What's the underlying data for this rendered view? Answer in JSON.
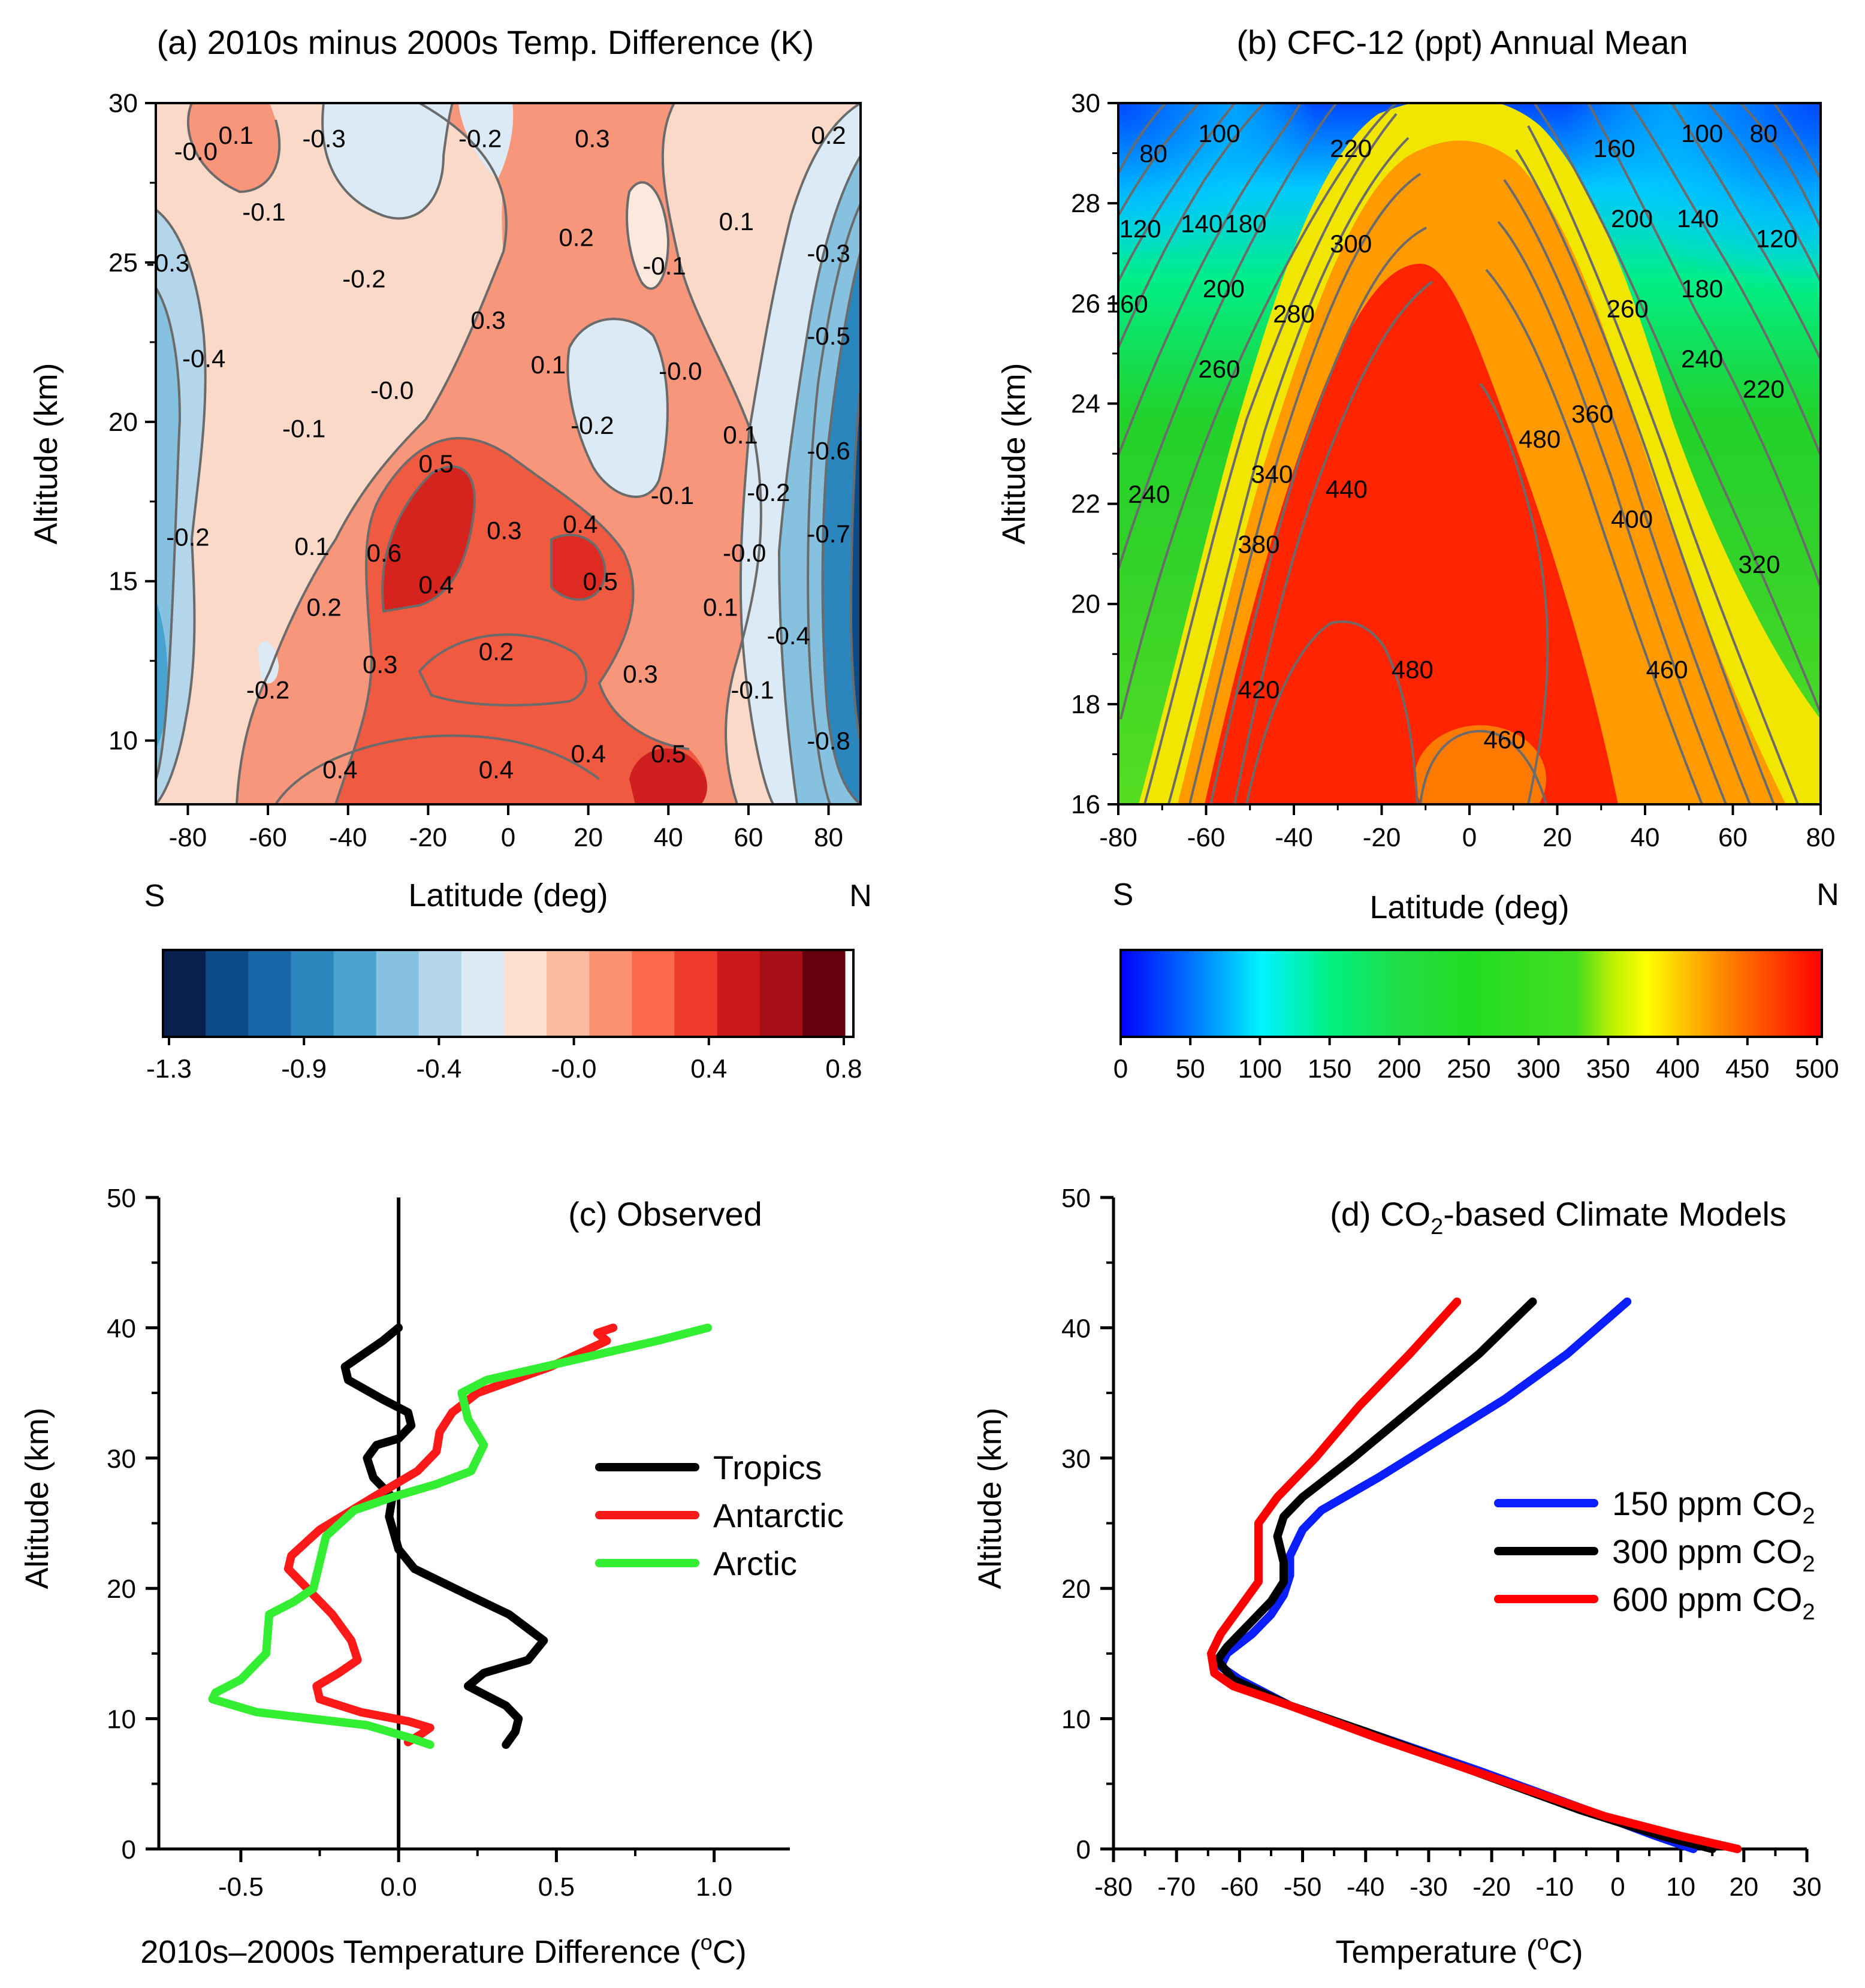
{
  "colors": {
    "contour_line": "#6b6b6b",
    "tropics": "#000000",
    "antarctic": "#ff1a1a",
    "arctic": "#33ee33",
    "co2_150": "#0a1eff",
    "co2_300": "#000000",
    "co2_600": "#ff0000"
  },
  "chart_data": [
    {
      "id": "a",
      "type": "heatmap",
      "title": "(a) 2010s minus 2000s Temp. Difference (K)",
      "xlabel": "Latitude (deg)",
      "ylabel": "Altitude (km)",
      "hemisphere_labels": {
        "south": "S",
        "north": "N"
      },
      "xlim": [
        -88,
        88
      ],
      "ylim": [
        8,
        30
      ],
      "xticks": [
        -80,
        -60,
        -40,
        -20,
        0,
        20,
        40,
        60,
        80
      ],
      "yticks": [
        10,
        15,
        20,
        25,
        30
      ],
      "colorbar": {
        "colors": [
          "#08214f",
          "#0c4b8a",
          "#1766a8",
          "#2b86be",
          "#4aa2cf",
          "#86c2e0",
          "#b4d6ea",
          "#dbeaf4",
          "#fde0d2",
          "#fcbba1",
          "#fc9272",
          "#fb6a4a",
          "#ef3b2c",
          "#cb181d",
          "#a50f15",
          "#67000d"
        ],
        "tick_labels": [
          "-1.3",
          "-0.9",
          "-0.4",
          "-0.0",
          "0.4",
          "0.8"
        ]
      },
      "contour_labels": [
        {
          "lat": -78,
          "alt": 28.5,
          "text": "-0.0"
        },
        {
          "lat": -68,
          "alt": 29.0,
          "text": "0.1"
        },
        {
          "lat": -46,
          "alt": 28.9,
          "text": "-0.3"
        },
        {
          "lat": -7,
          "alt": 28.9,
          "text": "-0.2"
        },
        {
          "lat": 21,
          "alt": 28.9,
          "text": "0.3"
        },
        {
          "lat": 80,
          "alt": 29.0,
          "text": "0.2"
        },
        {
          "lat": -61,
          "alt": 26.6,
          "text": "-0.1"
        },
        {
          "lat": -85,
          "alt": 25.0,
          "text": "-0.3"
        },
        {
          "lat": 17,
          "alt": 25.8,
          "text": "0.2"
        },
        {
          "lat": 57,
          "alt": 26.3,
          "text": "0.1"
        },
        {
          "lat": 39,
          "alt": 24.9,
          "text": "-0.1"
        },
        {
          "lat": 80,
          "alt": 25.3,
          "text": "-0.3"
        },
        {
          "lat": -36,
          "alt": 24.5,
          "text": "-0.2"
        },
        {
          "lat": -5,
          "alt": 23.2,
          "text": "0.3"
        },
        {
          "lat": -76,
          "alt": 22.0,
          "text": "-0.4"
        },
        {
          "lat": 43,
          "alt": 21.6,
          "text": "-0.0"
        },
        {
          "lat": 10,
          "alt": 21.8,
          "text": "0.1"
        },
        {
          "lat": 80,
          "alt": 22.7,
          "text": "-0.5"
        },
        {
          "lat": -29,
          "alt": 21.0,
          "text": "-0.0"
        },
        {
          "lat": -51,
          "alt": 19.8,
          "text": "-0.1"
        },
        {
          "lat": 21,
          "alt": 19.9,
          "text": "-0.2"
        },
        {
          "lat": 58,
          "alt": 19.6,
          "text": "0.1"
        },
        {
          "lat": 80,
          "alt": 19.1,
          "text": "-0.6"
        },
        {
          "lat": -18,
          "alt": 18.7,
          "text": "0.5"
        },
        {
          "lat": 41,
          "alt": 17.7,
          "text": "-0.1"
        },
        {
          "lat": 65,
          "alt": 17.8,
          "text": "-0.2"
        },
        {
          "lat": -80,
          "alt": 16.4,
          "text": "-0.2"
        },
        {
          "lat": 18,
          "alt": 16.8,
          "text": "0.4"
        },
        {
          "lat": -1,
          "alt": 16.6,
          "text": "0.3"
        },
        {
          "lat": 80,
          "alt": 16.5,
          "text": "-0.7"
        },
        {
          "lat": -49,
          "alt": 16.1,
          "text": "0.1"
        },
        {
          "lat": -31,
          "alt": 15.9,
          "text": "0.6"
        },
        {
          "lat": 59,
          "alt": 15.9,
          "text": "-0.0"
        },
        {
          "lat": -18,
          "alt": 14.9,
          "text": "0.4"
        },
        {
          "lat": 23,
          "alt": 15.0,
          "text": "0.5"
        },
        {
          "lat": -46,
          "alt": 14.2,
          "text": "0.2"
        },
        {
          "lat": 53,
          "alt": 14.2,
          "text": "0.1"
        },
        {
          "lat": 70,
          "alt": 13.3,
          "text": "-0.4"
        },
        {
          "lat": -3,
          "alt": 12.8,
          "text": "0.2"
        },
        {
          "lat": -32,
          "alt": 12.4,
          "text": "0.3"
        },
        {
          "lat": 33,
          "alt": 12.1,
          "text": "0.3"
        },
        {
          "lat": -60,
          "alt": 11.6,
          "text": "-0.2"
        },
        {
          "lat": 61,
          "alt": 11.6,
          "text": "-0.1"
        },
        {
          "lat": 80,
          "alt": 10.0,
          "text": "-0.8"
        },
        {
          "lat": 20,
          "alt": 9.6,
          "text": "0.4"
        },
        {
          "lat": 40,
          "alt": 9.6,
          "text": "0.5"
        },
        {
          "lat": -42,
          "alt": 9.1,
          "text": "0.4"
        },
        {
          "lat": -3,
          "alt": 9.1,
          "text": "0.4"
        }
      ]
    },
    {
      "id": "b",
      "type": "heatmap",
      "title": "(b) CFC-12 (ppt)   Annual Mean",
      "xlabel": "Latitude (deg)",
      "ylabel": "Altitude (km)",
      "hemisphere_labels": {
        "south": "S",
        "north": "N"
      },
      "xlim": [
        -80,
        80
      ],
      "ylim": [
        16,
        30
      ],
      "xticks": [
        -80,
        -60,
        -40,
        -20,
        0,
        20,
        40,
        60,
        80
      ],
      "yticks": [
        16,
        18,
        20,
        22,
        24,
        26,
        28,
        30
      ],
      "colorbar": {
        "range": [
          0,
          500
        ],
        "tick_labels": [
          "0",
          "50",
          "100",
          "150",
          "200",
          "250",
          "300",
          "350",
          "400",
          "450",
          "500"
        ]
      },
      "contour_labels": [
        {
          "lat": -72,
          "alt": 29.0,
          "text": "80"
        },
        {
          "lat": -57,
          "alt": 29.4,
          "text": "100"
        },
        {
          "lat": -27,
          "alt": 29.1,
          "text": "220"
        },
        {
          "lat": 33,
          "alt": 29.1,
          "text": "160"
        },
        {
          "lat": 53,
          "alt": 29.4,
          "text": "100"
        },
        {
          "lat": 67,
          "alt": 29.4,
          "text": "80"
        },
        {
          "lat": -75,
          "alt": 27.5,
          "text": "120"
        },
        {
          "lat": -61,
          "alt": 27.6,
          "text": "140"
        },
        {
          "lat": -51,
          "alt": 27.6,
          "text": "180"
        },
        {
          "lat": -27,
          "alt": 27.2,
          "text": "300"
        },
        {
          "lat": 37,
          "alt": 27.7,
          "text": "200"
        },
        {
          "lat": 52,
          "alt": 27.7,
          "text": "140"
        },
        {
          "lat": 70,
          "alt": 27.3,
          "text": "120"
        },
        {
          "lat": -78,
          "alt": 26.0,
          "text": "160"
        },
        {
          "lat": -56,
          "alt": 26.3,
          "text": "200"
        },
        {
          "lat": -40,
          "alt": 25.8,
          "text": "280"
        },
        {
          "lat": 53,
          "alt": 26.3,
          "text": "180"
        },
        {
          "lat": 36,
          "alt": 25.9,
          "text": "260"
        },
        {
          "lat": -57,
          "alt": 24.7,
          "text": "260"
        },
        {
          "lat": 53,
          "alt": 24.9,
          "text": "240"
        },
        {
          "lat": 67,
          "alt": 24.3,
          "text": "220"
        },
        {
          "lat": 28,
          "alt": 23.8,
          "text": "360"
        },
        {
          "lat": -45,
          "alt": 22.6,
          "text": "340"
        },
        {
          "lat": 16,
          "alt": 23.3,
          "text": "480"
        },
        {
          "lat": -28,
          "alt": 22.3,
          "text": "440"
        },
        {
          "lat": -73,
          "alt": 22.2,
          "text": "240"
        },
        {
          "lat": 37,
          "alt": 21.7,
          "text": "400"
        },
        {
          "lat": -48,
          "alt": 21.2,
          "text": "380"
        },
        {
          "lat": 66,
          "alt": 20.8,
          "text": "320"
        },
        {
          "lat": -48,
          "alt": 18.3,
          "text": "420"
        },
        {
          "lat": -13,
          "alt": 18.7,
          "text": "480"
        },
        {
          "lat": 45,
          "alt": 18.7,
          "text": "460"
        },
        {
          "lat": 8,
          "alt": 17.3,
          "text": "460"
        }
      ]
    },
    {
      "id": "c",
      "type": "line",
      "title": "(c) Observed",
      "xlabel": "2010s–2000s Temperature Difference (",
      "xlabel_unit_sup": "o",
      "xlabel_unit": "C)",
      "ylabel": "Altitude (km)",
      "xlim": [
        -0.76,
        1.24
      ],
      "ylim": [
        0,
        50
      ],
      "xticks": [
        -0.5,
        0.0,
        0.5,
        1.0
      ],
      "xtick_labels": [
        "-0.5",
        "0.0",
        "0.5",
        "1.0"
      ],
      "yticks": [
        0,
        10,
        20,
        30,
        40,
        50
      ],
      "legend_position": "right",
      "series": [
        {
          "name": "Tropics",
          "color_key": "tropics",
          "x": [
            0.0,
            -0.05,
            -0.17,
            -0.16,
            -0.05,
            0.03,
            0.04,
            0.0,
            -0.07,
            -0.1,
            -0.08,
            -0.02,
            -0.03,
            0.0,
            0.05,
            0.22,
            0.35,
            0.46,
            0.41,
            0.27,
            0.22,
            0.34,
            0.38,
            0.37,
            0.34
          ],
          "y": [
            40,
            39,
            37,
            36,
            34.5,
            33.5,
            32.5,
            31.5,
            31,
            30,
            28.5,
            27,
            25.5,
            23,
            21.5,
            19.5,
            18,
            16,
            14.5,
            13.5,
            12.5,
            11,
            10,
            9,
            8
          ]
        },
        {
          "name": "Antarctic",
          "color_key": "antarctic",
          "x": [
            0.68,
            0.63,
            0.66,
            0.48,
            0.25,
            0.17,
            0.13,
            0.12,
            0.06,
            -0.08,
            -0.25,
            -0.34,
            -0.35,
            -0.29,
            -0.21,
            -0.15,
            -0.13,
            -0.19,
            -0.26,
            -0.25,
            -0.12,
            0.03,
            0.1,
            0.07,
            0.03
          ],
          "y": [
            40,
            39.6,
            39,
            37,
            35,
            33.5,
            32,
            30.5,
            29,
            27,
            24.5,
            22.5,
            21.5,
            20,
            18,
            16,
            14.5,
            13.5,
            12.5,
            11.5,
            10.5,
            9.8,
            9.3,
            8.8,
            8.2
          ]
        },
        {
          "name": "Arctic",
          "color_key": "arctic",
          "x": [
            0.98,
            0.82,
            0.55,
            0.28,
            0.2,
            0.22,
            0.27,
            0.23,
            0.12,
            -0.02,
            -0.14,
            -0.23,
            -0.25,
            -0.27,
            -0.33,
            -0.41,
            -0.42,
            -0.5,
            -0.58,
            -0.59,
            -0.45,
            -0.1,
            0.04,
            0.1
          ],
          "y": [
            40,
            39,
            37.5,
            36,
            35,
            33,
            31,
            29,
            28,
            27,
            26,
            24,
            22,
            20,
            19,
            18,
            15,
            13,
            12,
            11.5,
            10.5,
            9.5,
            8.5,
            8
          ]
        }
      ]
    },
    {
      "id": "d",
      "type": "line",
      "title": "(d) CO",
      "title_sub": "2",
      "title_rest": "-based Climate Models",
      "xlabel": "Temperature (",
      "xlabel_unit_sup": "o",
      "xlabel_unit": "C)",
      "ylabel": "Altitude (km)",
      "xlim": [
        -80,
        30
      ],
      "ylim": [
        0,
        50
      ],
      "xticks": [
        -80,
        -70,
        -60,
        -50,
        -40,
        -30,
        -20,
        -10,
        0,
        10,
        20,
        30
      ],
      "xtick_labels": [
        "-80",
        "-70",
        "-60",
        "-50",
        "-40",
        "-30",
        "-20",
        "-10",
        "0",
        "10",
        "20",
        "30"
      ],
      "yticks": [
        0,
        10,
        20,
        30,
        40,
        50
      ],
      "legend_position": "right",
      "series": [
        {
          "name": "150 ppm CO",
          "name_sub": "2",
          "color_key": "co2_150",
          "x": [
            1.5,
            -8,
            -18,
            -28,
            -38,
            -47,
            -50,
            -52,
            -52,
            -53,
            -55,
            -58,
            -62,
            -63,
            -60,
            -52,
            -40,
            -22,
            -5,
            6,
            12
          ],
          "y": [
            42,
            38,
            34.5,
            31.5,
            28.5,
            26,
            24.5,
            22.5,
            21,
            19.5,
            18,
            16.5,
            15,
            14,
            13,
            11,
            9,
            6,
            3,
            1,
            0
          ]
        },
        {
          "name": "300 ppm CO",
          "name_sub": "2",
          "color_key": "co2_300",
          "x": [
            -13.5,
            -22,
            -32,
            -42,
            -50,
            -53,
            -54,
            -53,
            -53,
            -55,
            -58,
            -62,
            -63.5,
            -61,
            -52,
            -40,
            -23,
            -6,
            7,
            15
          ],
          "y": [
            42,
            38,
            34,
            30,
            27,
            25.5,
            24,
            22,
            20.5,
            19,
            17.5,
            15.5,
            14.5,
            13,
            11,
            9,
            6,
            3,
            1,
            0
          ]
        },
        {
          "name": "600 ppm CO",
          "name_sub": "2",
          "color_key": "co2_600",
          "x": [
            -25.5,
            -33,
            -41,
            -48,
            -54,
            -57,
            -57,
            -57,
            -60,
            -63,
            -64.5,
            -64,
            -61,
            -52,
            -38,
            -20,
            -2,
            10,
            19
          ],
          "y": [
            42,
            38,
            34,
            30,
            27,
            25,
            23,
            20.5,
            18.5,
            16.5,
            15,
            13.5,
            12.5,
            11,
            8.5,
            5.5,
            2.5,
            1,
            0
          ]
        }
      ]
    }
  ]
}
